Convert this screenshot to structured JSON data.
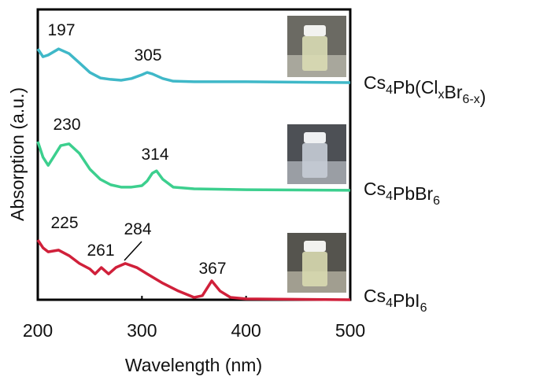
{
  "chart_data": {
    "type": "line",
    "xlabel": "Wavelength (nm)",
    "ylabel": "Absorption (a.u.)",
    "xlim": [
      200,
      500
    ],
    "xticks": [
      200,
      300,
      400,
      500
    ],
    "ylim": [
      0,
      100
    ],
    "series": [
      {
        "name": "Cs4Pb(ClxBr6-x)",
        "color": "#3fb8c8",
        "x": [
          200,
          205,
          210,
          220,
          230,
          240,
          250,
          260,
          270,
          280,
          290,
          300,
          305,
          310,
          320,
          330,
          350,
          400,
          500
        ],
        "values": [
          86.4,
          83.7,
          84.3,
          86.4,
          84.8,
          81.6,
          78.3,
          76.4,
          75.9,
          75.6,
          76.2,
          77.5,
          78.3,
          77.8,
          76.2,
          75.3,
          75.1,
          75.1,
          74.8
        ],
        "peak_labels": [
          "197",
          "305"
        ]
      },
      {
        "name": "Cs4PbBr6",
        "color": "#3ccf8e",
        "x": [
          200,
          205,
          210,
          215,
          222,
          230,
          240,
          250,
          260,
          270,
          280,
          290,
          300,
          305,
          310,
          314,
          320,
          330,
          350,
          400,
          500
        ],
        "values": [
          54.5,
          49.1,
          46.3,
          49.1,
          53.1,
          53.7,
          50.4,
          45.0,
          41.5,
          39.6,
          38.8,
          38.8,
          39.3,
          40.9,
          43.6,
          44.4,
          41.5,
          38.8,
          38.2,
          37.9,
          37.7
        ],
        "peak_labels": [
          "230",
          "314"
        ]
      },
      {
        "name": "Cs4PbI6",
        "color": "#d0203a",
        "x": [
          200,
          205,
          210,
          220,
          230,
          240,
          250,
          255,
          261,
          268,
          275,
          284,
          295,
          305,
          320,
          335,
          350,
          358,
          367,
          375,
          385,
          400,
          500
        ],
        "values": [
          20.6,
          17.9,
          16.5,
          17.1,
          15.2,
          12.5,
          10.6,
          8.9,
          11.1,
          8.9,
          11.1,
          12.5,
          11.1,
          8.9,
          5.7,
          3.0,
          0.8,
          1.4,
          6.5,
          3.0,
          0.8,
          0.3,
          0
        ],
        "peak_labels": [
          "225",
          "261",
          "284",
          "367"
        ]
      }
    ]
  }
}
